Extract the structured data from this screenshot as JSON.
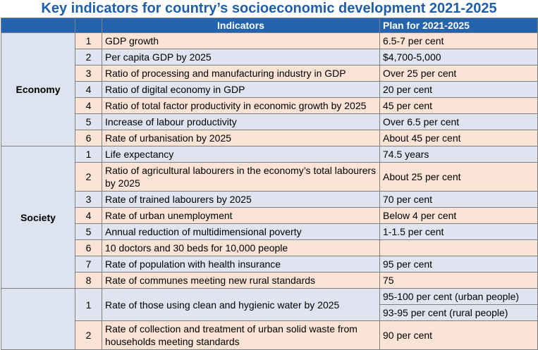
{
  "title": "Key indicators for country’s socioeconomic development 2021-2025",
  "columns": {
    "group": "",
    "num": "",
    "indicator": "Indicators",
    "plan": "Plan for 2021-2025"
  },
  "economy": {
    "label": "Economy",
    "rows": [
      {
        "num": "1",
        "indicator": "GDP growth",
        "plan": "6.5-7 per cent"
      },
      {
        "num": "2",
        "indicator": "Per capita GDP by 2025",
        "plan": "$4,700-5,000"
      },
      {
        "num": "3",
        "indicator": "Ratio of processing and manufacturing industry in GDP",
        "plan": "Over 25 per cent"
      },
      {
        "num": "4",
        "indicator": "Ratio of digital economy in GDP",
        "plan": "20 per cent"
      },
      {
        "num": "4",
        "indicator": "Ratio of total factor productivity in economic growth by 2025",
        "plan": "45 per cent"
      },
      {
        "num": "5",
        "indicator": "Increase of labour productivity",
        "plan": "Over 6.5 per cent"
      },
      {
        "num": "6",
        "indicator": "Rate of urbanisation by 2025",
        "plan": "About 45 per cent"
      }
    ]
  },
  "society": {
    "label": "Society",
    "rows": [
      {
        "num": "1",
        "indicator": "Life expectancy",
        "plan": "74.5 years"
      },
      {
        "num": "2",
        "indicator": "Ratio of agricultural labourers in the economy’s total labourers by 2025",
        "plan": "About 25 per cent"
      },
      {
        "num": "3",
        "indicator": "Rate of trained labourers by 2025",
        "plan": "70 per cent"
      },
      {
        "num": "4",
        "indicator": "Rate of urban unemployment",
        "plan": "Below 4 per cent"
      },
      {
        "num": "5",
        "indicator": "Annual reduction of multidimensional poverty",
        "plan": "1-1.5 per cent"
      },
      {
        "num": "6",
        "indicator": "10 doctors and 30 beds for 10,000 people",
        "plan": ""
      },
      {
        "num": "7",
        "indicator": "Rate of population with health insurance",
        "plan": "95 per cent"
      },
      {
        "num": "8",
        "indicator": "Rate of communes meeting new rural standards",
        "plan": "75"
      }
    ]
  },
  "environment": {
    "label": "",
    "rows": [
      {
        "num": "1",
        "indicator": "Rate of those using clean and hygienic water by 2025",
        "plan_a": "95-100 per cent (urban people)",
        "plan_b": "93-95 per cent (rural people)"
      },
      {
        "num": "2",
        "indicator": "Rate of collection and treatment of urban solid waste from households meeting standards",
        "plan": "90 per cent"
      }
    ]
  }
}
